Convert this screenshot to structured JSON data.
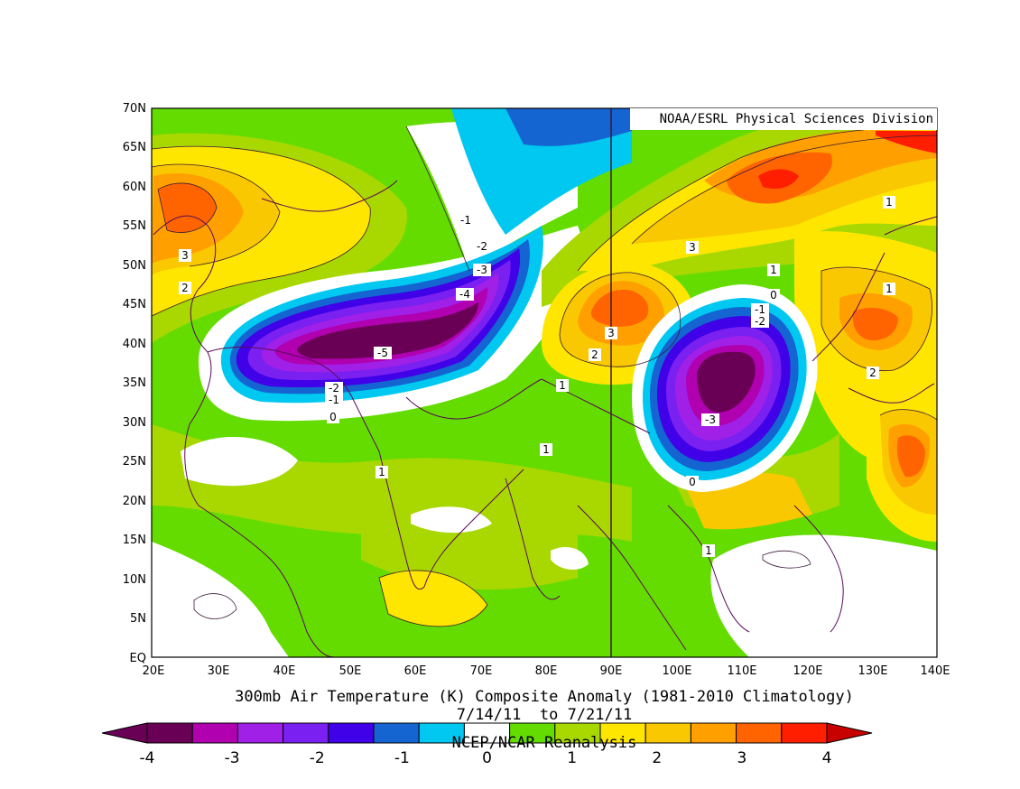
{
  "map": {
    "credit": "NOAA/ESRL Physical Sciences Division",
    "title": "300mb Air Temperature (K) Composite Anomaly (1981-2010 Climatology)",
    "date_range": "7/14/11  to 7/21/11",
    "source": "NCEP/NCAR Reanalysis",
    "lat_ticks": [
      "70N",
      "65N",
      "60N",
      "55N",
      "50N",
      "45N",
      "40N",
      "35N",
      "30N",
      "25N",
      "20N",
      "15N",
      "10N",
      "5N",
      "EQ"
    ],
    "lon_ticks": [
      "20E",
      "30E",
      "40E",
      "50E",
      "60E",
      "70E",
      "80E",
      "90E",
      "100E",
      "110E",
      "120E",
      "130E",
      "140E"
    ],
    "contour_labels": [
      "-1",
      "-2",
      "-3",
      "-4",
      "-5",
      "-2",
      "-1",
      "0",
      "1",
      "1",
      "1",
      "2",
      "3",
      "2",
      "3",
      "1",
      "1",
      "0",
      "-1",
      "-2",
      "-3",
      "0",
      "1",
      "3",
      "2",
      "1"
    ],
    "colorbar": {
      "colors": [
        "#6a0056",
        "#b000b0",
        "#a020e8",
        "#7a20f0",
        "#4000e8",
        "#1464d2",
        "#00c8f0",
        "#ffffff",
        "#64dc00",
        "#a8d800",
        "#ffe600",
        "#fac800",
        "#ffa000",
        "#ff6400",
        "#ff1e00"
      ],
      "low_color": "#6a0056",
      "high_color": "#c80000",
      "labels": [
        "-4",
        "-3",
        "-2",
        "-1",
        "0",
        "1",
        "2",
        "3",
        "4"
      ]
    }
  }
}
